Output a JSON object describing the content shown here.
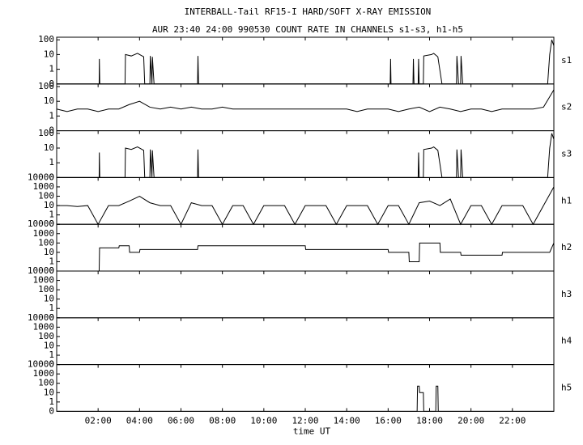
{
  "chart_data": [
    {
      "type": "line",
      "title": "INTERBALL-Tail RF15-I HARD/SOFT X-RAY EMISSION",
      "subtitle": "AUR 23:40 24:00 990530  COUNT RATE IN CHANNELS s1-s3, h1-h5",
      "name": "s1",
      "color": "#000000",
      "yscale": "log",
      "xlim": [
        0,
        24
      ],
      "ylim": [
        0,
        150
      ],
      "yticks": [
        0,
        1,
        10,
        100
      ],
      "x": [
        0,
        2.05,
        2.06,
        2.08,
        3.3,
        3.32,
        3.6,
        3.9,
        4.2,
        4.25,
        4.27,
        4.5,
        4.52,
        4.6,
        4.62,
        4.7,
        4.72,
        6.8,
        6.82,
        6.85,
        16.1,
        16.12,
        16.14,
        17.2,
        17.22,
        17.25,
        17.45,
        17.47,
        17.5,
        17.7,
        17.72,
        18.1,
        18.2,
        18.4,
        18.6,
        18.62,
        19.3,
        19.32,
        19.4,
        19.5,
        19.52,
        19.6,
        23.7,
        23.8,
        23.9,
        24
      ],
      "values": [
        0,
        0,
        5,
        0,
        0,
        10,
        8,
        12,
        7,
        0,
        0,
        0,
        8,
        0,
        7,
        0,
        0,
        0,
        8,
        0,
        0,
        5,
        0,
        0,
        5,
        0,
        0,
        5,
        0,
        0,
        8,
        10,
        12,
        7,
        0,
        0,
        0,
        8,
        0,
        0,
        8,
        0,
        0,
        10,
        100,
        40
      ]
    },
    {
      "type": "line",
      "name": "s2",
      "color": "#000000",
      "yscale": "log",
      "xlim": [
        0,
        24
      ],
      "ylim": [
        0,
        150
      ],
      "yticks": [
        0,
        1,
        10,
        100
      ],
      "x": [
        0,
        0.5,
        1,
        1.5,
        2,
        2.5,
        3,
        3.5,
        4,
        4.5,
        5,
        5.5,
        6,
        6.5,
        7,
        7.5,
        8,
        8.5,
        9,
        9.5,
        10,
        10.5,
        11,
        11.5,
        12,
        12.5,
        13,
        13.5,
        14,
        14.5,
        15,
        15.5,
        16,
        16.5,
        17,
        17.5,
        18,
        18.5,
        19,
        19.5,
        20,
        20.5,
        21,
        21.5,
        22,
        22.5,
        23,
        23.5,
        24
      ],
      "values": [
        3,
        2,
        3,
        3,
        2,
        3,
        3,
        6,
        10,
        4,
        3,
        4,
        3,
        4,
        3,
        3,
        4,
        3,
        3,
        3,
        3,
        3,
        3,
        3,
        3,
        3,
        3,
        3,
        3,
        2,
        3,
        3,
        3,
        2,
        3,
        4,
        2,
        4,
        3,
        2,
        3,
        3,
        2,
        3,
        3,
        3,
        3,
        4,
        60
      ]
    },
    {
      "type": "line",
      "name": "s3",
      "color": "#000000",
      "yscale": "log",
      "xlim": [
        0,
        24
      ],
      "ylim": [
        0,
        150
      ],
      "yticks": [
        0,
        1,
        10,
        100
      ],
      "x": [
        0,
        2.05,
        2.06,
        2.08,
        3.3,
        3.32,
        3.6,
        3.9,
        4.2,
        4.25,
        4.27,
        4.5,
        4.52,
        4.6,
        4.62,
        4.7,
        4.72,
        6.8,
        6.82,
        6.85,
        17.45,
        17.47,
        17.5,
        17.7,
        17.72,
        18.1,
        18.2,
        18.4,
        18.6,
        18.62,
        19.3,
        19.32,
        19.4,
        19.5,
        19.52,
        19.6,
        23.7,
        23.8,
        23.9,
        24
      ],
      "values": [
        0,
        0,
        5,
        0,
        0,
        10,
        8,
        12,
        7,
        0,
        0,
        0,
        8,
        0,
        7,
        0,
        0,
        0,
        8,
        0,
        0,
        5,
        0,
        0,
        8,
        10,
        12,
        7,
        0,
        0,
        0,
        8,
        0,
        0,
        8,
        0,
        0,
        10,
        100,
        40
      ]
    },
    {
      "type": "line",
      "name": "h1",
      "color": "#000000",
      "yscale": "log",
      "xlim": [
        0,
        24
      ],
      "ylim": [
        0,
        10000
      ],
      "yticks": [
        0,
        1,
        10,
        100,
        1000,
        10000
      ],
      "x": [
        0,
        0.5,
        1,
        1.5,
        2,
        2.5,
        3,
        3.5,
        4,
        4.5,
        5,
        5.5,
        6,
        6.5,
        7,
        7.5,
        8,
        8.5,
        9,
        9.5,
        10,
        10.5,
        11,
        11.5,
        12,
        12.5,
        13,
        13.5,
        14,
        14.5,
        15,
        15.5,
        16,
        16.5,
        17,
        17.5,
        18,
        18.5,
        19,
        19.5,
        20,
        20.5,
        21,
        21.5,
        22,
        22.5,
        23,
        23.5,
        24
      ],
      "values": [
        10,
        10,
        8,
        10,
        0,
        10,
        10,
        30,
        100,
        20,
        10,
        10,
        0,
        20,
        10,
        10,
        0,
        10,
        10,
        0,
        10,
        10,
        10,
        0,
        10,
        10,
        10,
        0,
        10,
        10,
        10,
        0,
        10,
        10,
        0,
        20,
        30,
        10,
        50,
        0,
        10,
        10,
        0,
        10,
        10,
        10,
        0,
        10,
        1000
      ]
    },
    {
      "type": "line",
      "name": "h2",
      "color": "#000000",
      "yscale": "log",
      "xlim": [
        0,
        24
      ],
      "ylim": [
        0,
        10000
      ],
      "yticks": [
        0,
        1,
        10,
        100,
        1000,
        10000
      ],
      "x": [
        0,
        2.05,
        2.07,
        3,
        3.02,
        3.5,
        3.52,
        4,
        4.02,
        4.5,
        4.52,
        6.8,
        6.82,
        12,
        12.02,
        16,
        16.02,
        17,
        17.02,
        17.5,
        17.52,
        18.5,
        18.52,
        19.5,
        19.52,
        21.5,
        21.52,
        23.8,
        24
      ],
      "values": [
        0,
        0,
        30,
        30,
        50,
        50,
        10,
        10,
        20,
        20,
        20,
        20,
        50,
        50,
        20,
        20,
        10,
        10,
        1,
        1,
        100,
        100,
        10,
        10,
        5,
        5,
        10,
        10,
        100
      ]
    },
    {
      "type": "line",
      "name": "h3",
      "yscale": "log",
      "xlim": [
        0,
        24
      ],
      "ylim": [
        0,
        10000
      ],
      "yticks": [
        0,
        1,
        10,
        100,
        1000,
        10000
      ]
    },
    {
      "type": "line",
      "name": "h4",
      "yscale": "log",
      "xlim": [
        0,
        24
      ],
      "ylim": [
        0,
        10000
      ],
      "yticks": [
        0,
        1,
        10,
        100,
        1000,
        10000
      ]
    },
    {
      "type": "line",
      "name": "h5",
      "color": "#000000",
      "yscale": "log",
      "xlim": [
        0,
        24
      ],
      "ylim": [
        0,
        10000
      ],
      "yticks": [
        0,
        1,
        10,
        100,
        1000,
        10000
      ],
      "x": [
        0,
        17.4,
        17.42,
        17.5,
        17.52,
        17.7,
        17.72,
        18.3,
        18.32,
        18.4,
        18.42,
        24
      ],
      "values": [
        0,
        0,
        50,
        50,
        10,
        10,
        0,
        0,
        50,
        50,
        0,
        0
      ],
      "xlabel": "time UT",
      "xticks": [
        {
          "value": 2,
          "label": "02:00"
        },
        {
          "value": 4,
          "label": "04:00"
        },
        {
          "value": 6,
          "label": "06:00"
        },
        {
          "value": 8,
          "label": "08:00"
        },
        {
          "value": 10,
          "label": "10:00"
        },
        {
          "value": 12,
          "label": "12:00"
        },
        {
          "value": 14,
          "label": "14:00"
        },
        {
          "value": 16,
          "label": "16:00"
        },
        {
          "value": 18,
          "label": "18:00"
        },
        {
          "value": 20,
          "label": "20:00"
        },
        {
          "value": 22,
          "label": "22:00"
        }
      ]
    }
  ]
}
